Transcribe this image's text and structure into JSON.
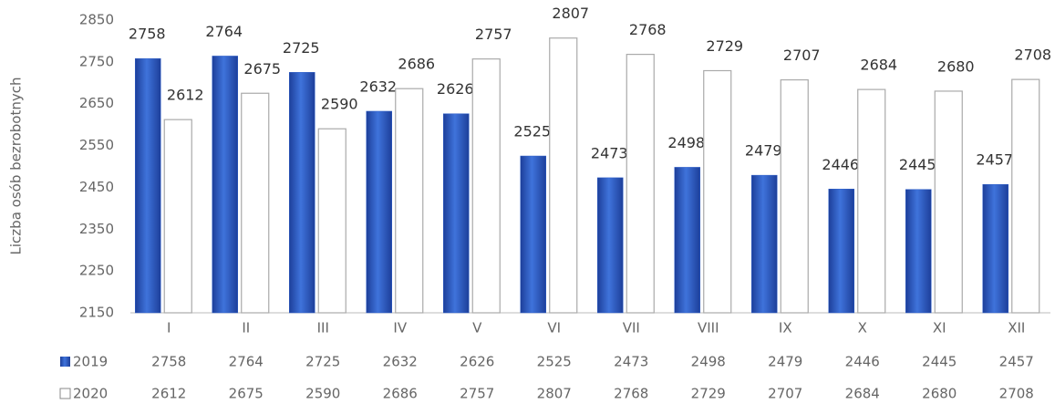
{
  "chart_data": {
    "type": "bar",
    "y_label": "Liczba osób bezrobotnych",
    "categories": [
      "I",
      "II",
      "III",
      "IV",
      "V",
      "VI",
      "VII",
      "VIII",
      "IX",
      "X",
      "XI",
      "XII"
    ],
    "series": [
      {
        "name": "2019",
        "color": "#2f5fc8",
        "values": [
          2758,
          2764,
          2725,
          2632,
          2626,
          2525,
          2473,
          2498,
          2479,
          2446,
          2445,
          2457
        ]
      },
      {
        "name": "2020",
        "color": "#ffffff",
        "values": [
          2612,
          2675,
          2590,
          2686,
          2757,
          2807,
          2768,
          2729,
          2707,
          2684,
          2680,
          2708
        ]
      }
    ],
    "ylim": [
      2150,
      2850
    ],
    "yticks": [
      2150,
      2250,
      2350,
      2450,
      2550,
      2650,
      2750,
      2850
    ],
    "grid": false
  }
}
